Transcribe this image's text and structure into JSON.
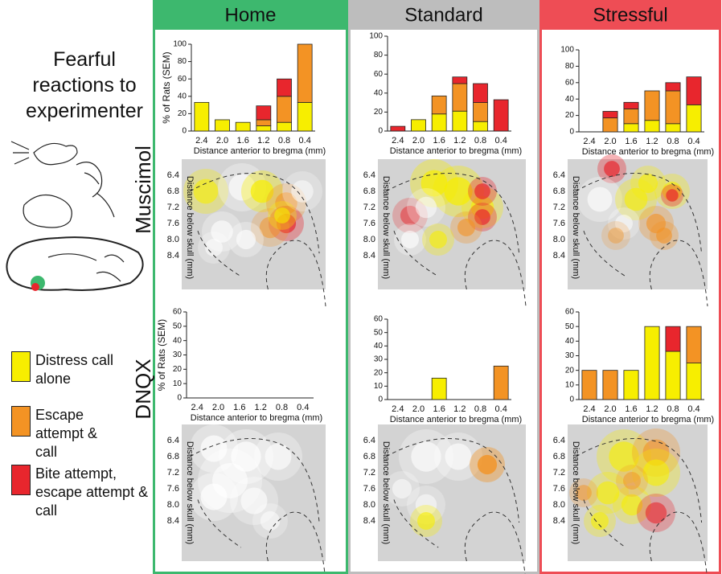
{
  "heading": "Fearful reactions to experimenter",
  "columns": [
    {
      "name": "Home",
      "color": "#3db86e"
    },
    {
      "name": "Standard",
      "color": "#bdbdbd"
    },
    {
      "name": "Stressful",
      "color": "#ee4d55"
    }
  ],
  "rows": [
    "Muscimol",
    "DNQX"
  ],
  "brain_maps": [
    {
      "ylabel": "Distance below skull (mm)",
      "yticks": [
        "6.4",
        "6.8",
        "7.2",
        "7.6",
        "8.0",
        "8.4"
      ]
    },
    {
      "ylabel": "Distance below skull (mm)",
      "yticks": [
        "6.4",
        "6.8",
        "7.2",
        "7.6",
        "8.0",
        "8.4"
      ]
    },
    {
      "ylabel": "Distance below skull (mm)",
      "yticks": [
        "6.4",
        "6.8",
        "7.2",
        "7.6",
        "8.0",
        "8.4"
      ]
    },
    {
      "ylabel": "Distance below skull (mm)",
      "yticks": [
        "6.4",
        "6.8",
        "7.2",
        "7.6",
        "8.0",
        "8.4"
      ]
    },
    {
      "ylabel": "Distance below skull (mm)",
      "yticks": [
        "6.4",
        "6.8",
        "7.2",
        "7.6",
        "8.0",
        "8.4"
      ]
    },
    {
      "ylabel": "Distance below skull (mm)",
      "yticks": [
        "6.4",
        "6.8",
        "7.2",
        "7.6",
        "8.0",
        "8.4"
      ]
    }
  ],
  "chart_data": [
    {
      "type": "bar",
      "stacked": true,
      "ylabel": "% of Rats (SEM)",
      "xlabel": "Distance anterior to bregma (mm)",
      "categories": [
        "2.4",
        "2.0",
        "1.6",
        "1.2",
        "0.8",
        "0.4"
      ],
      "series": [
        {
          "name": "Distress call alone",
          "color": "#f7ee00",
          "values": [
            33,
            13,
            10,
            6,
            10,
            33
          ]
        },
        {
          "name": "Escape attempt & call",
          "color": "#f39324",
          "values": [
            0,
            0,
            0,
            7,
            30,
            67
          ]
        },
        {
          "name": "Bite attempt, escape attempt & call",
          "color": "#e8262d",
          "values": [
            0,
            0,
            0,
            16,
            20,
            0
          ]
        }
      ],
      "ylim": [
        0,
        100
      ],
      "yticks": [
        0,
        20,
        40,
        60,
        80,
        100
      ]
    },
    {
      "type": "bar",
      "stacked": true,
      "xlabel": "Distance anterior to bregma (mm)",
      "categories": [
        "2.4",
        "2.0",
        "1.6",
        "1.2",
        "0.8",
        "0.4"
      ],
      "series": [
        {
          "color": "#f7ee00",
          "values": [
            0,
            12,
            18,
            21,
            10,
            0
          ]
        },
        {
          "color": "#f39324",
          "values": [
            0,
            0,
            19,
            29,
            20,
            0
          ]
        },
        {
          "color": "#e8262d",
          "values": [
            5,
            0,
            0,
            7,
            20,
            33
          ]
        }
      ],
      "ylim": [
        0,
        100
      ],
      "yticks": [
        0,
        20,
        40,
        60,
        80,
        100
      ]
    },
    {
      "type": "bar",
      "stacked": true,
      "xlabel": "Distance anterior to bregma (mm)",
      "categories": [
        "2.4",
        "2.0",
        "1.6",
        "1.2",
        "0.8",
        "0.4"
      ],
      "series": [
        {
          "color": "#f7ee00",
          "values": [
            0,
            0,
            10,
            14,
            10,
            33
          ]
        },
        {
          "color": "#f39324",
          "values": [
            0,
            17,
            18,
            36,
            40,
            0
          ]
        },
        {
          "color": "#e8262d",
          "values": [
            0,
            8,
            8,
            0,
            10,
            34
          ]
        }
      ],
      "ylim": [
        0,
        100
      ],
      "yticks": [
        0,
        20,
        40,
        60,
        80,
        100
      ]
    },
    {
      "type": "bar",
      "stacked": true,
      "ylabel": "% of Rats (SEM)",
      "xlabel": "Distance anterior to bregma (mm)",
      "categories": [
        "2.4",
        "2.0",
        "1.6",
        "1.2",
        "0.8",
        "0.4"
      ],
      "series": [
        {
          "color": "#f7ee00",
          "values": [
            0,
            0,
            0,
            0,
            0,
            0
          ]
        },
        {
          "color": "#f39324",
          "values": [
            0,
            0,
            0,
            0,
            0,
            0
          ]
        },
        {
          "color": "#e8262d",
          "values": [
            0,
            0,
            0,
            0,
            0,
            0
          ]
        }
      ],
      "ylim": [
        0,
        60
      ],
      "yticks": [
        0,
        10,
        20,
        30,
        40,
        50,
        60
      ]
    },
    {
      "type": "bar",
      "stacked": true,
      "xlabel": "Distance anterior to bregma (mm)",
      "categories": [
        "2.4",
        "2.0",
        "1.6",
        "1.2",
        "0.8",
        "0.4"
      ],
      "series": [
        {
          "color": "#f7ee00",
          "values": [
            0,
            0,
            16,
            0,
            0,
            0
          ]
        },
        {
          "color": "#f39324",
          "values": [
            0,
            0,
            0,
            0,
            0,
            25
          ]
        },
        {
          "color": "#e8262d",
          "values": [
            0,
            0,
            0,
            0,
            0,
            0
          ]
        }
      ],
      "ylim": [
        0,
        60
      ],
      "yticks": [
        0,
        10,
        20,
        30,
        40,
        50,
        60
      ]
    },
    {
      "type": "bar",
      "stacked": true,
      "xlabel": "Distance anterior to bregma (mm)",
      "categories": [
        "2.4",
        "2.0",
        "1.6",
        "1.2",
        "0.8",
        "0.4"
      ],
      "series": [
        {
          "color": "#f7ee00",
          "values": [
            0,
            0,
            20,
            50,
            33,
            25
          ]
        },
        {
          "color": "#f39324",
          "values": [
            20,
            20,
            0,
            0,
            0,
            25
          ]
        },
        {
          "color": "#e8262d",
          "values": [
            0,
            0,
            0,
            0,
            17,
            0
          ]
        }
      ],
      "ylim": [
        0,
        60
      ],
      "yticks": [
        0,
        10,
        20,
        30,
        40,
        50,
        60
      ]
    }
  ]
}
